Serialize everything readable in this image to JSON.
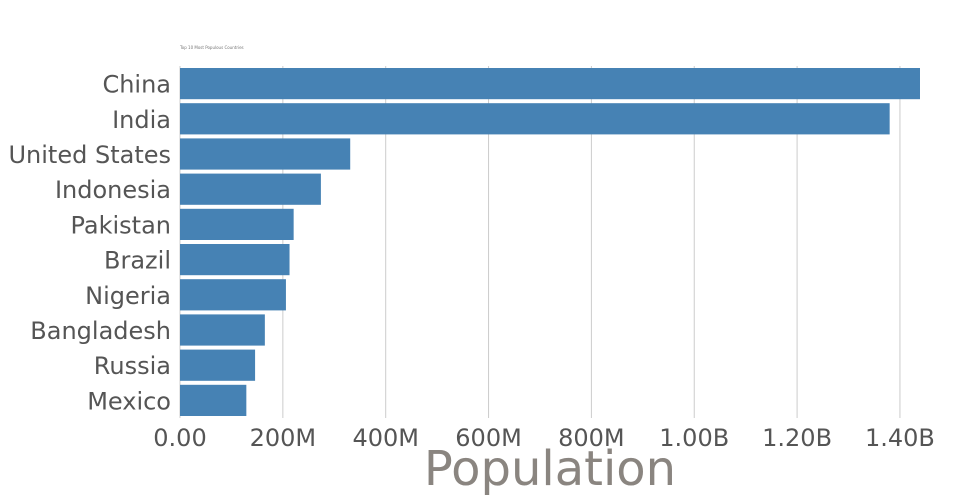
{
  "chart_data": {
    "type": "bar",
    "orientation": "horizontal",
    "title": "Top 10 Most Populous Countries",
    "xlabel": "Population",
    "ylabel": "",
    "categories": [
      "China",
      "India",
      "United States",
      "Indonesia",
      "Pakistan",
      "Brazil",
      "Nigeria",
      "Bangladesh",
      "Russia",
      "Mexico"
    ],
    "values": [
      1439000000,
      1380000000,
      331000000,
      274000000,
      221000000,
      213000000,
      206000000,
      165000000,
      146000000,
      129000000
    ],
    "xlim": [
      0,
      1439000000
    ],
    "x_ticks": [
      0,
      200000000,
      400000000,
      600000000,
      800000000,
      1000000000,
      1200000000,
      1400000000
    ],
    "x_tick_labels": [
      "0.00",
      "200M",
      "400M",
      "600M",
      "800M",
      "1.00B",
      "1.20B",
      "1.40B"
    ],
    "bar_color": "#4682b4",
    "grid": true
  }
}
